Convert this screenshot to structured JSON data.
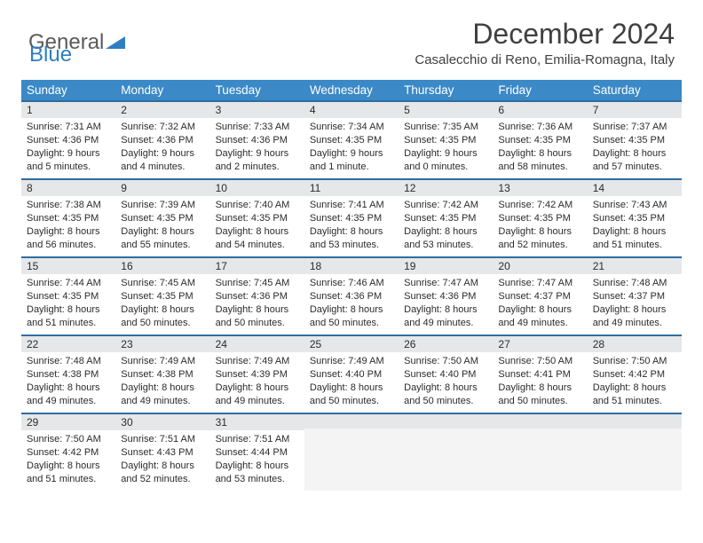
{
  "brand": {
    "part1": "General",
    "part2": "Blue"
  },
  "title": "December 2024",
  "location": "Casalecchio di Reno, Emilia-Romagna, Italy",
  "colors": {
    "header_bg": "#3b89c7",
    "header_text": "#ffffff",
    "daynum_bg": "#e6e7e8",
    "daynum_border": "#2d6da3",
    "empty_bg": "#f4f4f4",
    "text": "#2b2b2b",
    "title_text": "#404040"
  },
  "weekdays": [
    "Sunday",
    "Monday",
    "Tuesday",
    "Wednesday",
    "Thursday",
    "Friday",
    "Saturday"
  ],
  "days": [
    {
      "n": "1",
      "sr": "7:31 AM",
      "ss": "4:36 PM",
      "dl": "9 hours and 5 minutes."
    },
    {
      "n": "2",
      "sr": "7:32 AM",
      "ss": "4:36 PM",
      "dl": "9 hours and 4 minutes."
    },
    {
      "n": "3",
      "sr": "7:33 AM",
      "ss": "4:36 PM",
      "dl": "9 hours and 2 minutes."
    },
    {
      "n": "4",
      "sr": "7:34 AM",
      "ss": "4:35 PM",
      "dl": "9 hours and 1 minute."
    },
    {
      "n": "5",
      "sr": "7:35 AM",
      "ss": "4:35 PM",
      "dl": "9 hours and 0 minutes."
    },
    {
      "n": "6",
      "sr": "7:36 AM",
      "ss": "4:35 PM",
      "dl": "8 hours and 58 minutes."
    },
    {
      "n": "7",
      "sr": "7:37 AM",
      "ss": "4:35 PM",
      "dl": "8 hours and 57 minutes."
    },
    {
      "n": "8",
      "sr": "7:38 AM",
      "ss": "4:35 PM",
      "dl": "8 hours and 56 minutes."
    },
    {
      "n": "9",
      "sr": "7:39 AM",
      "ss": "4:35 PM",
      "dl": "8 hours and 55 minutes."
    },
    {
      "n": "10",
      "sr": "7:40 AM",
      "ss": "4:35 PM",
      "dl": "8 hours and 54 minutes."
    },
    {
      "n": "11",
      "sr": "7:41 AM",
      "ss": "4:35 PM",
      "dl": "8 hours and 53 minutes."
    },
    {
      "n": "12",
      "sr": "7:42 AM",
      "ss": "4:35 PM",
      "dl": "8 hours and 53 minutes."
    },
    {
      "n": "13",
      "sr": "7:42 AM",
      "ss": "4:35 PM",
      "dl": "8 hours and 52 minutes."
    },
    {
      "n": "14",
      "sr": "7:43 AM",
      "ss": "4:35 PM",
      "dl": "8 hours and 51 minutes."
    },
    {
      "n": "15",
      "sr": "7:44 AM",
      "ss": "4:35 PM",
      "dl": "8 hours and 51 minutes."
    },
    {
      "n": "16",
      "sr": "7:45 AM",
      "ss": "4:35 PM",
      "dl": "8 hours and 50 minutes."
    },
    {
      "n": "17",
      "sr": "7:45 AM",
      "ss": "4:36 PM",
      "dl": "8 hours and 50 minutes."
    },
    {
      "n": "18",
      "sr": "7:46 AM",
      "ss": "4:36 PM",
      "dl": "8 hours and 50 minutes."
    },
    {
      "n": "19",
      "sr": "7:47 AM",
      "ss": "4:36 PM",
      "dl": "8 hours and 49 minutes."
    },
    {
      "n": "20",
      "sr": "7:47 AM",
      "ss": "4:37 PM",
      "dl": "8 hours and 49 minutes."
    },
    {
      "n": "21",
      "sr": "7:48 AM",
      "ss": "4:37 PM",
      "dl": "8 hours and 49 minutes."
    },
    {
      "n": "22",
      "sr": "7:48 AM",
      "ss": "4:38 PM",
      "dl": "8 hours and 49 minutes."
    },
    {
      "n": "23",
      "sr": "7:49 AM",
      "ss": "4:38 PM",
      "dl": "8 hours and 49 minutes."
    },
    {
      "n": "24",
      "sr": "7:49 AM",
      "ss": "4:39 PM",
      "dl": "8 hours and 49 minutes."
    },
    {
      "n": "25",
      "sr": "7:49 AM",
      "ss": "4:40 PM",
      "dl": "8 hours and 50 minutes."
    },
    {
      "n": "26",
      "sr": "7:50 AM",
      "ss": "4:40 PM",
      "dl": "8 hours and 50 minutes."
    },
    {
      "n": "27",
      "sr": "7:50 AM",
      "ss": "4:41 PM",
      "dl": "8 hours and 50 minutes."
    },
    {
      "n": "28",
      "sr": "7:50 AM",
      "ss": "4:42 PM",
      "dl": "8 hours and 51 minutes."
    },
    {
      "n": "29",
      "sr": "7:50 AM",
      "ss": "4:42 PM",
      "dl": "8 hours and 51 minutes."
    },
    {
      "n": "30",
      "sr": "7:51 AM",
      "ss": "4:43 PM",
      "dl": "8 hours and 52 minutes."
    },
    {
      "n": "31",
      "sr": "7:51 AM",
      "ss": "4:44 PM",
      "dl": "8 hours and 53 minutes."
    }
  ],
  "labels": {
    "sunrise": "Sunrise:",
    "sunset": "Sunset:",
    "daylight": "Daylight:"
  }
}
